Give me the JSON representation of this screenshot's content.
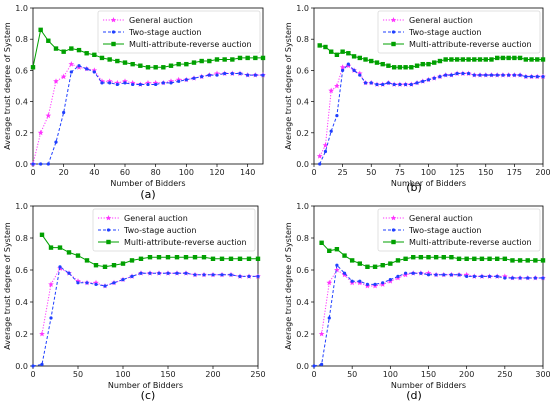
{
  "chart_data": [
    {
      "type": "line",
      "caption": "(a)",
      "xlabel": "Number of Bidders",
      "ylabel": "Average trust degree of System",
      "xlim": [
        0,
        150
      ],
      "ylim": [
        0,
        1.0
      ],
      "xticks": [
        0,
        20,
        40,
        60,
        80,
        100,
        120,
        140
      ],
      "yticks": [
        0.0,
        0.2,
        0.4,
        0.6,
        0.8,
        1.0
      ],
      "legend_position": "top-right",
      "series": [
        {
          "name": "General auction",
          "color": "#ff33ff",
          "style": "dotted",
          "marker": "star",
          "x": [
            0,
            5,
            10,
            15,
            20,
            25,
            30,
            35,
            40,
            45,
            50,
            55,
            60,
            65,
            70,
            75,
            80,
            85,
            90,
            95,
            100,
            105,
            110,
            115,
            120,
            125,
            130,
            135,
            140,
            145,
            150
          ],
          "y": [
            0,
            0.2,
            0.31,
            0.53,
            0.56,
            0.64,
            0.62,
            0.61,
            0.6,
            0.53,
            0.53,
            0.52,
            0.53,
            0.52,
            0.51,
            0.52,
            0.52,
            0.52,
            0.53,
            0.54,
            0.54,
            0.55,
            0.56,
            0.57,
            0.58,
            0.58,
            0.58,
            0.58,
            0.57,
            0.57,
            0.57
          ]
        },
        {
          "name": "Two-stage auction",
          "color": "#1f3fff",
          "style": "dashed",
          "marker": "dot",
          "x": [
            0,
            5,
            10,
            15,
            20,
            25,
            30,
            35,
            40,
            45,
            50,
            55,
            60,
            65,
            70,
            75,
            80,
            85,
            90,
            95,
            100,
            105,
            110,
            115,
            120,
            125,
            130,
            135,
            140,
            145,
            150
          ],
          "y": [
            0,
            0,
            0,
            0.14,
            0.33,
            0.59,
            0.63,
            0.61,
            0.59,
            0.52,
            0.52,
            0.51,
            0.52,
            0.51,
            0.51,
            0.51,
            0.51,
            0.52,
            0.52,
            0.53,
            0.54,
            0.55,
            0.56,
            0.57,
            0.57,
            0.58,
            0.58,
            0.58,
            0.57,
            0.57,
            0.57
          ]
        },
        {
          "name": "Multi-attribute-reverse auction",
          "color": "#00a000",
          "style": "solid",
          "marker": "square",
          "x": [
            0,
            5,
            10,
            15,
            20,
            25,
            30,
            35,
            40,
            45,
            50,
            55,
            60,
            65,
            70,
            75,
            80,
            85,
            90,
            95,
            100,
            105,
            110,
            115,
            120,
            125,
            130,
            135,
            140,
            145,
            150
          ],
          "y": [
            0.62,
            0.86,
            0.79,
            0.74,
            0.72,
            0.74,
            0.73,
            0.71,
            0.7,
            0.68,
            0.67,
            0.66,
            0.65,
            0.64,
            0.63,
            0.62,
            0.62,
            0.62,
            0.63,
            0.64,
            0.64,
            0.65,
            0.66,
            0.66,
            0.67,
            0.67,
            0.67,
            0.68,
            0.68,
            0.68,
            0.68
          ]
        }
      ]
    },
    {
      "type": "line",
      "caption": "(b)",
      "xlabel": "Number of Bidders",
      "ylabel": "Average trust degree of System",
      "xlim": [
        0,
        200
      ],
      "ylim": [
        0,
        1.0
      ],
      "xticks": [
        0,
        25,
        50,
        75,
        100,
        125,
        150,
        175,
        200
      ],
      "yticks": [
        0.0,
        0.2,
        0.4,
        0.6,
        0.8,
        1.0
      ],
      "legend_position": "top-right",
      "series": [
        {
          "name": "General auction",
          "color": "#ff33ff",
          "style": "dotted",
          "marker": "star",
          "x": [
            5,
            10,
            15,
            20,
            25,
            30,
            35,
            40,
            45,
            50,
            55,
            60,
            65,
            70,
            75,
            80,
            85,
            90,
            95,
            100,
            105,
            110,
            115,
            120,
            125,
            130,
            135,
            140,
            145,
            150,
            155,
            160,
            165,
            170,
            175,
            180,
            185,
            190,
            195,
            200
          ],
          "y": [
            0.05,
            0.12,
            0.47,
            0.5,
            0.62,
            0.63,
            0.6,
            0.58,
            0.52,
            0.52,
            0.51,
            0.51,
            0.52,
            0.51,
            0.51,
            0.51,
            0.51,
            0.52,
            0.53,
            0.54,
            0.55,
            0.56,
            0.57,
            0.57,
            0.58,
            0.58,
            0.58,
            0.57,
            0.57,
            0.57,
            0.57,
            0.57,
            0.57,
            0.57,
            0.57,
            0.57,
            0.56,
            0.56,
            0.56,
            0.56
          ]
        },
        {
          "name": "Two-stage auction",
          "color": "#1f3fff",
          "style": "dashed",
          "marker": "dot",
          "x": [
            5,
            10,
            15,
            20,
            25,
            30,
            35,
            40,
            45,
            50,
            55,
            60,
            65,
            70,
            75,
            80,
            85,
            90,
            95,
            100,
            105,
            110,
            115,
            120,
            125,
            130,
            135,
            140,
            145,
            150,
            155,
            160,
            165,
            170,
            175,
            180,
            185,
            190,
            195,
            200
          ],
          "y": [
            0,
            0.08,
            0.21,
            0.31,
            0.6,
            0.64,
            0.6,
            0.57,
            0.52,
            0.52,
            0.51,
            0.51,
            0.52,
            0.51,
            0.51,
            0.51,
            0.51,
            0.52,
            0.53,
            0.54,
            0.55,
            0.56,
            0.57,
            0.57,
            0.58,
            0.58,
            0.58,
            0.57,
            0.57,
            0.57,
            0.57,
            0.57,
            0.57,
            0.57,
            0.57,
            0.57,
            0.56,
            0.56,
            0.56,
            0.56
          ]
        },
        {
          "name": "Multi-attribute-reverse auction",
          "color": "#00a000",
          "style": "solid",
          "marker": "square",
          "x": [
            5,
            10,
            15,
            20,
            25,
            30,
            35,
            40,
            45,
            50,
            55,
            60,
            65,
            70,
            75,
            80,
            85,
            90,
            95,
            100,
            105,
            110,
            115,
            120,
            125,
            130,
            135,
            140,
            145,
            150,
            155,
            160,
            165,
            170,
            175,
            180,
            185,
            190,
            195,
            200
          ],
          "y": [
            0.76,
            0.75,
            0.72,
            0.7,
            0.72,
            0.71,
            0.69,
            0.68,
            0.67,
            0.66,
            0.65,
            0.64,
            0.63,
            0.62,
            0.62,
            0.62,
            0.62,
            0.63,
            0.64,
            0.64,
            0.65,
            0.66,
            0.67,
            0.67,
            0.67,
            0.67,
            0.67,
            0.67,
            0.67,
            0.67,
            0.67,
            0.68,
            0.68,
            0.68,
            0.68,
            0.68,
            0.67,
            0.67,
            0.67,
            0.67
          ]
        }
      ]
    },
    {
      "type": "line",
      "caption": "(c)",
      "xlabel": "Number of Bidders",
      "ylabel": "Average trust degree of System",
      "xlim": [
        0,
        250
      ],
      "ylim": [
        0,
        1.0
      ],
      "xticks": [
        0,
        50,
        100,
        150,
        200,
        250
      ],
      "yticks": [
        0.0,
        0.2,
        0.4,
        0.6,
        0.8,
        1.0
      ],
      "legend_position": "top-right",
      "series": [
        {
          "name": "General auction",
          "color": "#ff33ff",
          "style": "dotted",
          "marker": "star",
          "x": [
            10,
            20,
            30,
            40,
            50,
            60,
            70,
            80,
            90,
            100,
            110,
            120,
            130,
            140,
            150,
            160,
            170,
            180,
            190,
            200,
            210,
            220,
            230,
            240,
            250
          ],
          "y": [
            0.2,
            0.51,
            0.61,
            0.58,
            0.53,
            0.52,
            0.52,
            0.5,
            0.52,
            0.54,
            0.56,
            0.58,
            0.58,
            0.58,
            0.58,
            0.58,
            0.58,
            0.57,
            0.57,
            0.57,
            0.57,
            0.57,
            0.56,
            0.56,
            0.56
          ]
        },
        {
          "name": "Two-stage auction",
          "color": "#1f3fff",
          "style": "dashed",
          "marker": "dot",
          "x": [
            0,
            10,
            20,
            30,
            40,
            50,
            60,
            70,
            80,
            90,
            100,
            110,
            120,
            130,
            140,
            150,
            160,
            170,
            180,
            190,
            200,
            210,
            220,
            230,
            240,
            250
          ],
          "y": [
            0,
            0.01,
            0.3,
            0.62,
            0.58,
            0.52,
            0.52,
            0.51,
            0.5,
            0.52,
            0.54,
            0.56,
            0.58,
            0.58,
            0.58,
            0.58,
            0.58,
            0.58,
            0.57,
            0.57,
            0.57,
            0.57,
            0.57,
            0.56,
            0.56,
            0.56
          ]
        },
        {
          "name": "Multi-attribute-reverse auction",
          "color": "#00a000",
          "style": "solid",
          "marker": "square",
          "x": [
            10,
            20,
            30,
            40,
            50,
            60,
            70,
            80,
            90,
            100,
            110,
            120,
            130,
            140,
            150,
            160,
            170,
            180,
            190,
            200,
            210,
            220,
            230,
            240,
            250
          ],
          "y": [
            0.82,
            0.74,
            0.74,
            0.71,
            0.69,
            0.66,
            0.63,
            0.62,
            0.63,
            0.64,
            0.66,
            0.67,
            0.68,
            0.68,
            0.68,
            0.68,
            0.68,
            0.68,
            0.68,
            0.67,
            0.67,
            0.67,
            0.67,
            0.67,
            0.67
          ]
        }
      ]
    },
    {
      "type": "line",
      "caption": "(d)",
      "xlabel": "Number of Bidders",
      "ylabel": "Average trust degree of System",
      "xlim": [
        0,
        300
      ],
      "ylim": [
        0,
        1.0
      ],
      "xticks": [
        0,
        50,
        100,
        150,
        200,
        250,
        300
      ],
      "yticks": [
        0.0,
        0.2,
        0.4,
        0.6,
        0.8,
        1.0
      ],
      "legend_position": "top-right",
      "series": [
        {
          "name": "General auction",
          "color": "#ff33ff",
          "style": "dotted",
          "marker": "star",
          "x": [
            10,
            20,
            30,
            40,
            50,
            60,
            70,
            80,
            90,
            100,
            110,
            120,
            130,
            140,
            150,
            160,
            170,
            180,
            190,
            200,
            210,
            220,
            230,
            240,
            250,
            260,
            270,
            280,
            290,
            300
          ],
          "y": [
            0.2,
            0.52,
            0.6,
            0.57,
            0.52,
            0.52,
            0.5,
            0.5,
            0.51,
            0.53,
            0.55,
            0.57,
            0.58,
            0.58,
            0.58,
            0.57,
            0.57,
            0.57,
            0.57,
            0.57,
            0.56,
            0.56,
            0.56,
            0.56,
            0.56,
            0.55,
            0.55,
            0.55,
            0.55,
            0.55
          ]
        },
        {
          "name": "Two-stage auction",
          "color": "#1f3fff",
          "style": "dashed",
          "marker": "dot",
          "x": [
            0,
            10,
            20,
            30,
            40,
            50,
            60,
            70,
            80,
            90,
            100,
            110,
            120,
            130,
            140,
            150,
            160,
            170,
            180,
            190,
            200,
            210,
            220,
            230,
            240,
            250,
            260,
            270,
            280,
            290,
            300
          ],
          "y": [
            0,
            0.01,
            0.3,
            0.63,
            0.58,
            0.53,
            0.53,
            0.51,
            0.51,
            0.52,
            0.54,
            0.56,
            0.58,
            0.58,
            0.58,
            0.57,
            0.57,
            0.57,
            0.57,
            0.57,
            0.56,
            0.56,
            0.56,
            0.56,
            0.56,
            0.55,
            0.55,
            0.55,
            0.55,
            0.55,
            0.55
          ]
        },
        {
          "name": "Multi-attribute-reverse auction",
          "color": "#00a000",
          "style": "solid",
          "marker": "square",
          "x": [
            10,
            20,
            30,
            40,
            50,
            60,
            70,
            80,
            90,
            100,
            110,
            120,
            130,
            140,
            150,
            160,
            170,
            180,
            190,
            200,
            210,
            220,
            230,
            240,
            250,
            260,
            270,
            280,
            290,
            300
          ],
          "y": [
            0.77,
            0.72,
            0.73,
            0.69,
            0.66,
            0.64,
            0.62,
            0.62,
            0.63,
            0.64,
            0.66,
            0.67,
            0.68,
            0.68,
            0.68,
            0.68,
            0.68,
            0.68,
            0.67,
            0.67,
            0.67,
            0.67,
            0.67,
            0.67,
            0.67,
            0.66,
            0.66,
            0.66,
            0.66,
            0.66
          ]
        }
      ]
    }
  ]
}
